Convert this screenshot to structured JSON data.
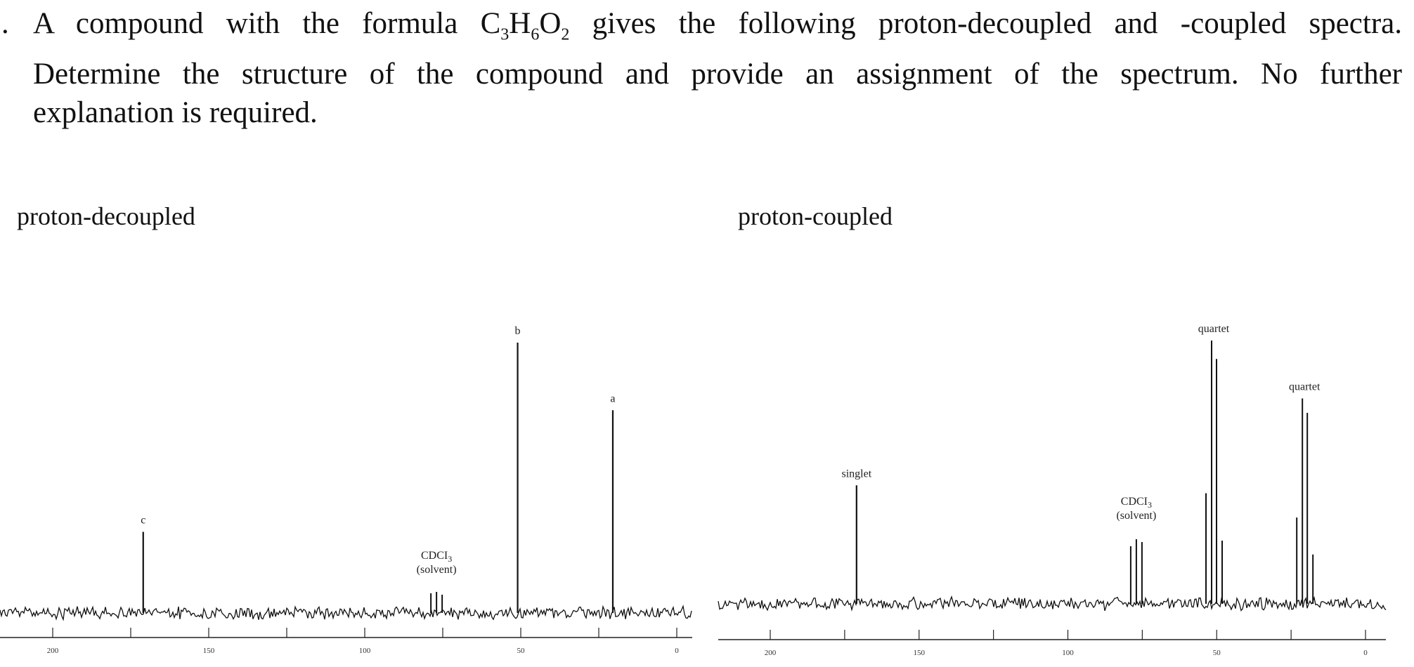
{
  "question": {
    "number": ".",
    "line1_pre": "A compound with the formula C",
    "sub1": "3",
    "h": "H",
    "sub2": "6",
    "o": "O",
    "sub3": "2",
    "line1_post": " gives the following proton-decoupled and -coupled spectra.",
    "line2": "Determine the structure of the compound and provide an assignment of the spectrum. No further",
    "line3": "explanation is required."
  },
  "spectra": [
    {
      "title": "proton-decoupled",
      "x_ticks": [
        "200",
        "150",
        "100",
        "50",
        "0"
      ],
      "peaks": [
        {
          "label": "c",
          "ppm": 171,
          "intensity": 0.3
        },
        {
          "label": "b",
          "ppm": 51,
          "intensity": 1.0
        },
        {
          "label": "a",
          "ppm": 20.5,
          "intensity": 0.75
        }
      ],
      "solvent_label": "CDCI",
      "solvent_sub": "3",
      "solvent_note": "(solvent)"
    },
    {
      "title": "proton-coupled",
      "x_ticks": [
        "200",
        "150",
        "100",
        "50",
        "0"
      ],
      "peaks": [
        {
          "label": "singlet",
          "ppm": 171,
          "intensity": 0.45
        },
        {
          "label": "quartet",
          "ppm": 51,
          "intensity": 1.0
        },
        {
          "label": "quartet",
          "ppm": 20.5,
          "intensity": 0.78
        }
      ],
      "solvent_label": "CDCI",
      "solvent_sub": "3",
      "solvent_note": "(solvent)"
    }
  ],
  "colors": {
    "trace": "#111111",
    "axis": "#222222"
  }
}
